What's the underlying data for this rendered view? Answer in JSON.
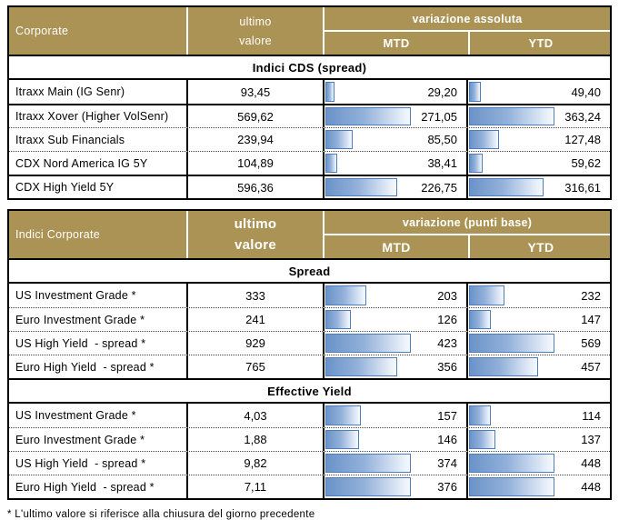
{
  "colors": {
    "header_bg": "#AB9355",
    "header_text": "#FFFFFF",
    "bar_fill_start": "#6B93C8",
    "bar_fill_end": "#F6F9FD",
    "bar_border": "#4E7DBD",
    "grid_line": "#000000"
  },
  "tables": [
    {
      "title": "Corporate",
      "value_header_lines": [
        "ultimo",
        "valore"
      ],
      "variation_header": "variazione assoluta",
      "sub_cols": [
        "MTD",
        "YTD"
      ],
      "sections": [
        {
          "label": "Indici CDS (spread)",
          "row_separators": [
            "solid",
            "dotted",
            "dotted",
            "solid"
          ],
          "rows": [
            {
              "label": "Itraxx Main (IG Senr)",
              "ultimo": "93,45",
              "mtd": "29,20",
              "ytd": "49,40"
            },
            {
              "label": "Itraxx Xover (Higher VolSenr)",
              "ultimo": "569,62",
              "mtd": "271,05",
              "ytd": "363,24"
            },
            {
              "label": "Itraxx Sub Financials",
              "ultimo": "239,94",
              "mtd": "85,50",
              "ytd": "127,48"
            },
            {
              "label": "CDX Nord America IG 5Y",
              "ultimo": "104,89",
              "mtd": "38,41",
              "ytd": "59,62"
            },
            {
              "label": "CDX High Yield 5Y",
              "ultimo": "596,36",
              "mtd": "226,75",
              "ytd": "316,61"
            }
          ]
        }
      ]
    },
    {
      "title": "Indici Corporate",
      "value_header_lines": [
        "ultimo",
        "valore"
      ],
      "variation_header": "variazione (punti base)",
      "sub_cols": [
        "MTD",
        "YTD"
      ],
      "sections": [
        {
          "label": "Spread",
          "row_separators": [
            "dotted",
            "dotted",
            "dotted"
          ],
          "rows": [
            {
              "label": "US Investment Grade *",
              "ultimo": "333",
              "mtd": "203",
              "ytd": "232"
            },
            {
              "label": "Euro Investment Grade *",
              "ultimo": "241",
              "mtd": "126",
              "ytd": "147"
            },
            {
              "label": "US High Yield  - spread *",
              "ultimo": "929",
              "mtd": "423",
              "ytd": "569"
            },
            {
              "label": "Euro High Yield  - spread *",
              "ultimo": "765",
              "mtd": "356",
              "ytd": "457"
            }
          ]
        },
        {
          "label": "Effective Yield",
          "row_separators": [
            "dotted",
            "dotted",
            "dotted"
          ],
          "rows": [
            {
              "label": "US Investment Grade *",
              "ultimo": "4,03",
              "mtd": "157",
              "ytd": "114"
            },
            {
              "label": "Euro Investment Grade *",
              "ultimo": "1,88",
              "mtd": "146",
              "ytd": "137"
            },
            {
              "label": "US High Yield  - spread *",
              "ultimo": "9,82",
              "mtd": "374",
              "ytd": "448"
            },
            {
              "label": "Euro High Yield  - spread *",
              "ultimo": "7,11",
              "mtd": "376",
              "ytd": "448"
            }
          ]
        }
      ]
    }
  ],
  "footnote": "* L'ultimo valore si riferisce alla chiusura del giorno precedente",
  "chart_data": [
    {
      "type": "table",
      "title": "Corporate — Indici CDS (spread)",
      "columns": [
        "Corporate",
        "ultimo valore",
        "variazione assoluta MTD",
        "variazione assoluta YTD"
      ],
      "rows": [
        [
          "Itraxx Main (IG Senr)",
          93.45,
          29.2,
          49.4
        ],
        [
          "Itraxx Xover (Higher VolSenr)",
          569.62,
          271.05,
          363.24
        ],
        [
          "Itraxx Sub Financials",
          239.94,
          85.5,
          127.48
        ],
        [
          "CDX Nord America IG 5Y",
          104.89,
          38.41,
          59.62
        ],
        [
          "CDX High Yield 5Y",
          596.36,
          226.75,
          316.61
        ]
      ],
      "notes": "MTD and YTD cells contain left-aligned blue gradient data bars, zero-based, scaled so the section maximum spans about 60% of the cell width"
    },
    {
      "type": "table",
      "title": "Indici Corporate — Spread",
      "columns": [
        "Indici Corporate",
        "ultimo valore",
        "variazione (punti base) MTD",
        "variazione (punti base) YTD"
      ],
      "rows": [
        [
          "US Investment Grade *",
          333,
          203,
          232
        ],
        [
          "Euro Investment Grade *",
          241,
          126,
          147
        ],
        [
          "US High Yield - spread *",
          929,
          423,
          569
        ],
        [
          "Euro High Yield - spread *",
          765,
          356,
          457
        ]
      ],
      "notes": "data bars as above"
    },
    {
      "type": "table",
      "title": "Indici Corporate — Effective Yield",
      "columns": [
        "Indici Corporate",
        "ultimo valore",
        "variazione (punti base) MTD",
        "variazione (punti base) YTD"
      ],
      "rows": [
        [
          "US Investment Grade *",
          4.03,
          157,
          114
        ],
        [
          "Euro Investment Grade *",
          1.88,
          146,
          137
        ],
        [
          "US High Yield - spread *",
          9.82,
          374,
          448
        ],
        [
          "Euro High Yield - spread *",
          7.11,
          376,
          448
        ]
      ],
      "notes": "data bars as above"
    }
  ]
}
